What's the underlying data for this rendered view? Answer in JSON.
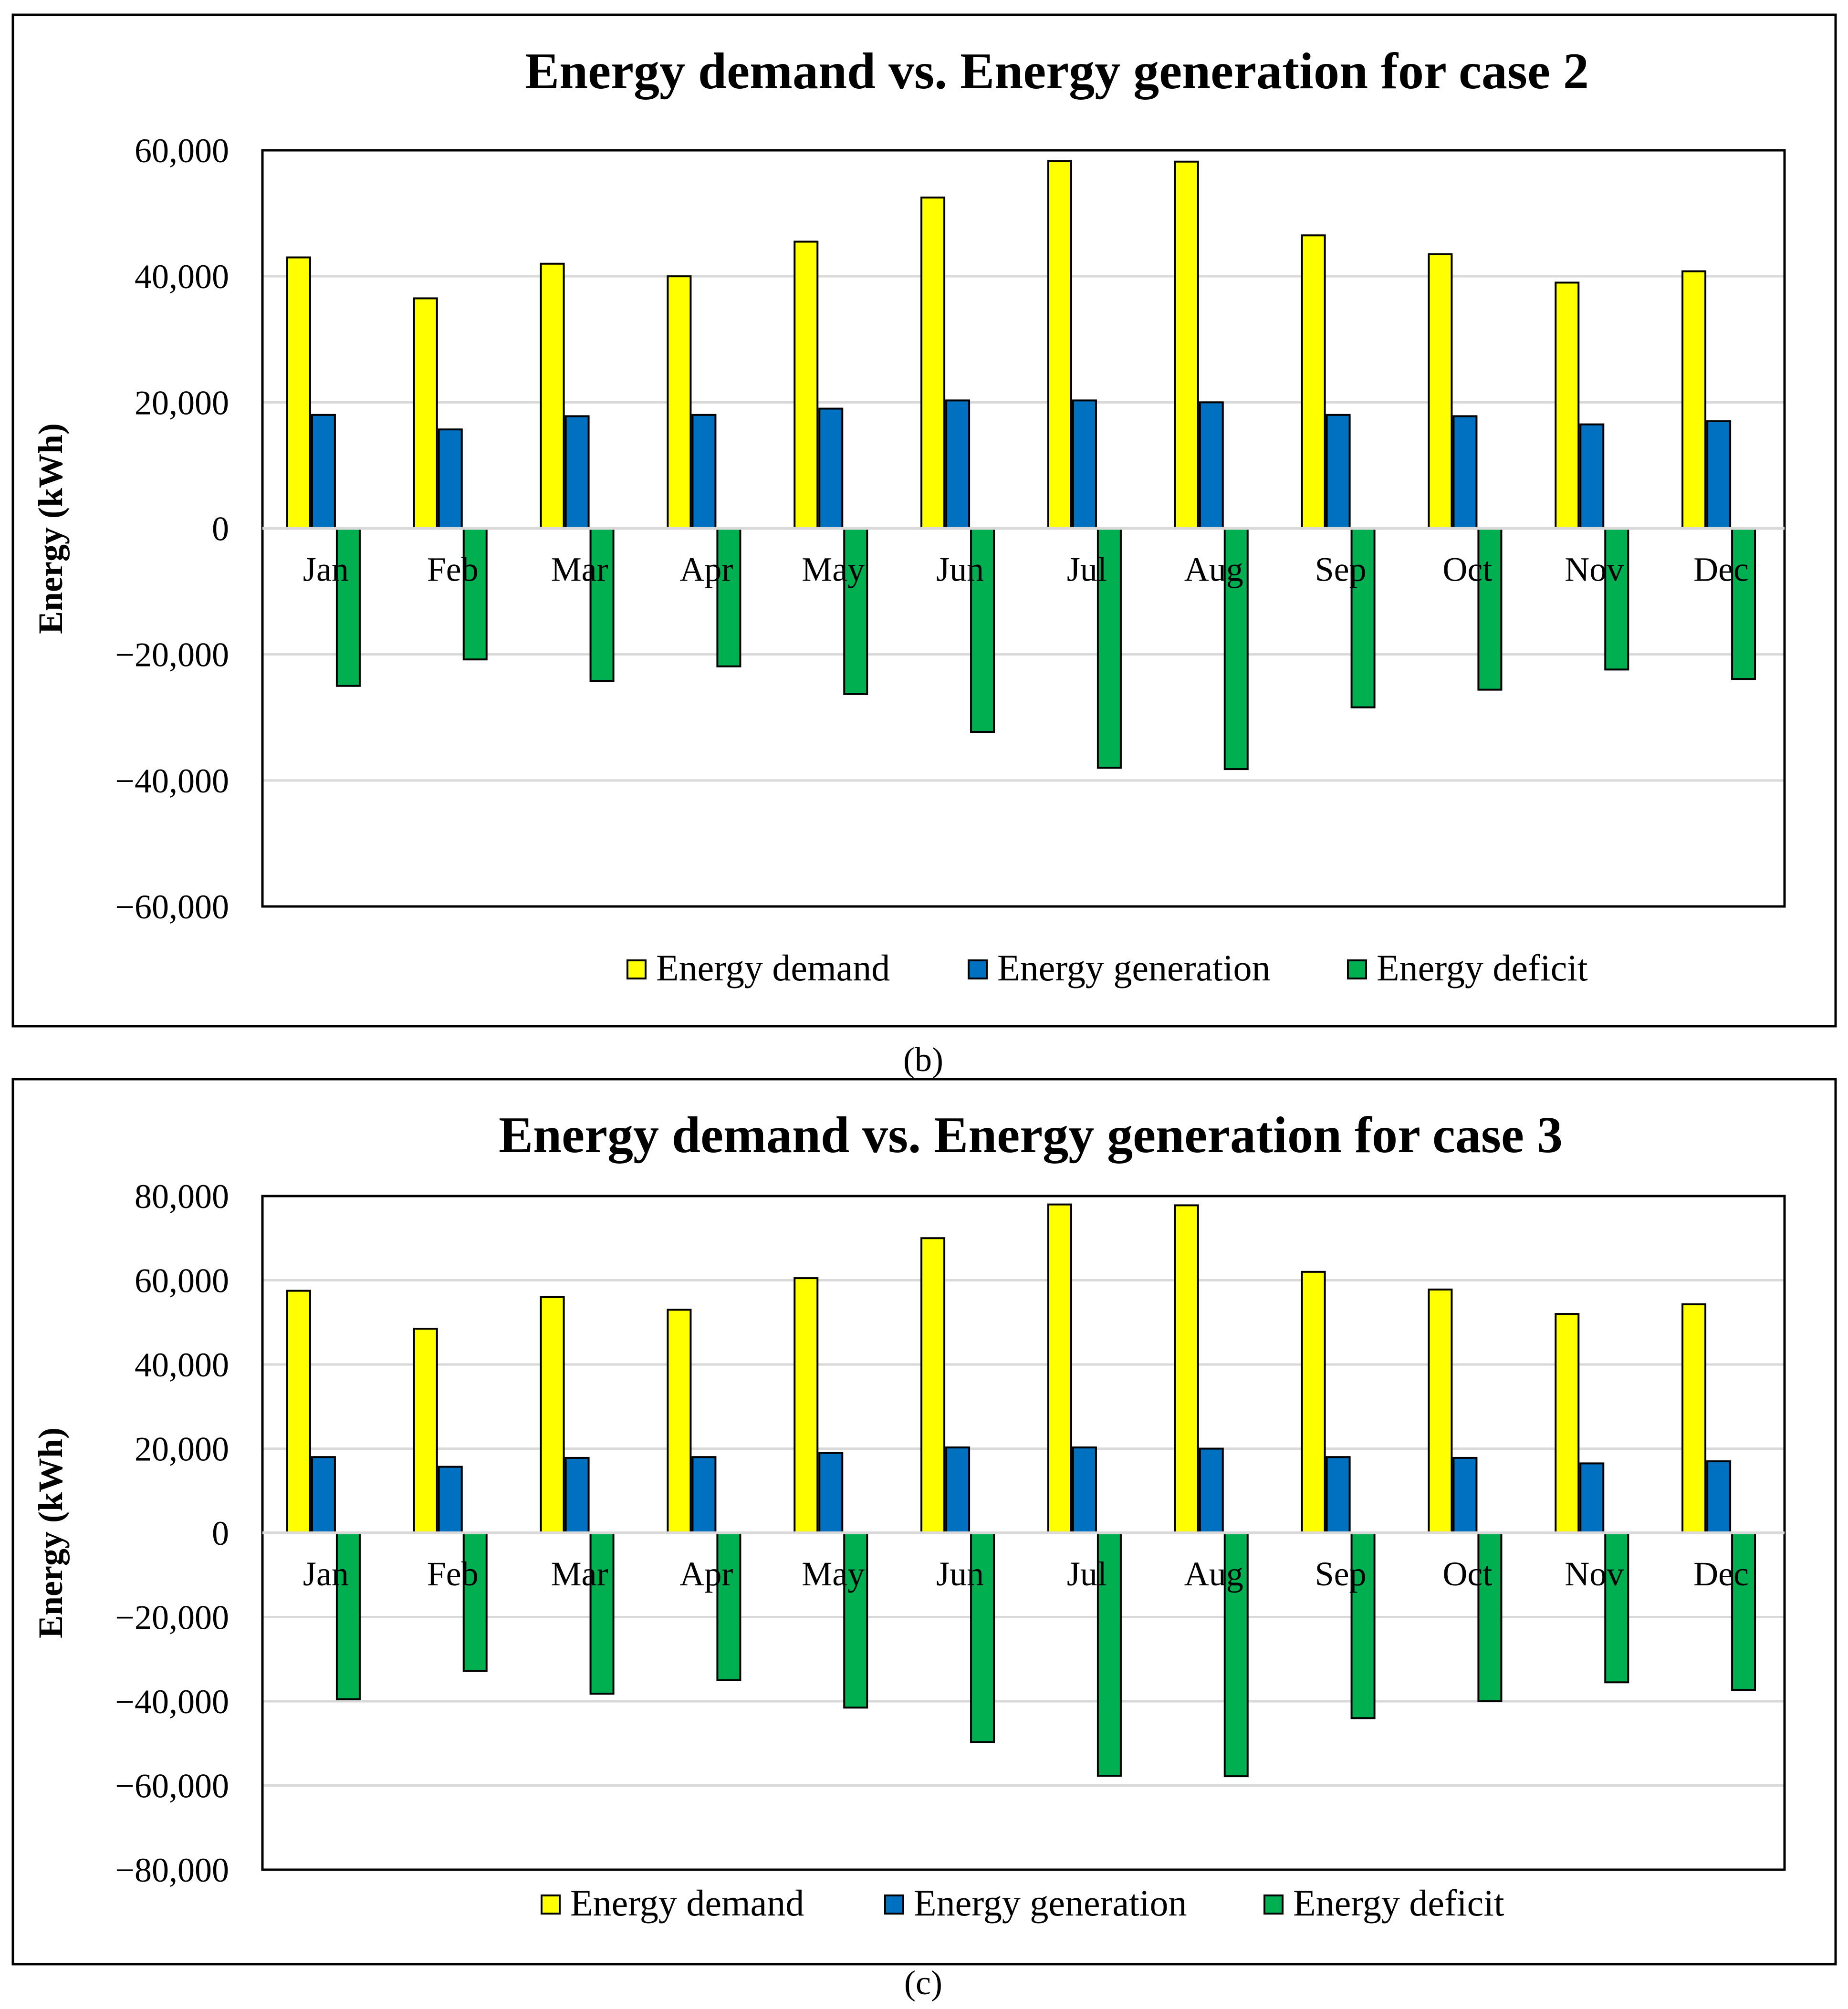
{
  "colors": {
    "demand": "#ffff00",
    "generation": "#0070c0",
    "deficit": "#00b050",
    "gridline": "#d9d9d9",
    "frame": "#000000"
  },
  "chart_data": [
    {
      "type": "bar",
      "title": "Energy demand vs. Energy generation for case 2",
      "ylabel": "Energy (kWh)",
      "xlabel": "",
      "categories": [
        "Jan",
        "Feb",
        "Mar",
        "Apr",
        "May",
        "Jun",
        "Jul",
        "Aug",
        "Sep",
        "Oct",
        "Nov",
        "Dec"
      ],
      "ylim": [
        -60000,
        60000
      ],
      "yticks": [
        60000,
        40000,
        20000,
        0,
        -20000,
        -40000,
        -60000
      ],
      "ytick_labels": [
        "60,000",
        "40,000",
        "20,000",
        "0",
        "−20,000",
        "−40,000",
        "−60,000"
      ],
      "grid": true,
      "series": [
        {
          "name": "Energy demand",
          "key": "demand",
          "values": [
            43000,
            36500,
            42000,
            40000,
            45500,
            52500,
            58300,
            58200,
            46500,
            43500,
            39000,
            40800
          ]
        },
        {
          "name": "Energy generation",
          "key": "generation",
          "values": [
            18000,
            15700,
            17800,
            18000,
            19000,
            20300,
            20300,
            20000,
            18000,
            17800,
            16500,
            17000
          ]
        },
        {
          "name": "Energy deficit",
          "key": "deficit",
          "values": [
            -25000,
            -20800,
            -24200,
            -21900,
            -26300,
            -32300,
            -38000,
            -38200,
            -28400,
            -25600,
            -22400,
            -23900
          ]
        }
      ],
      "legend_position": "bottom",
      "caption": "(b)",
      "caption_letter": "b"
    },
    {
      "type": "bar",
      "title": "Energy demand vs. Energy generation for case 3",
      "ylabel": "Energy (kWh)",
      "xlabel": "",
      "categories": [
        "Jan",
        "Feb",
        "Mar",
        "Apr",
        "May",
        "Jun",
        "Jul",
        "Aug",
        "Sep",
        "Oct",
        "Nov",
        "Dec"
      ],
      "ylim": [
        -80000,
        80000
      ],
      "yticks": [
        80000,
        60000,
        40000,
        20000,
        0,
        -20000,
        -40000,
        -60000,
        -80000
      ],
      "ytick_labels": [
        "80,000",
        "60,000",
        "40,000",
        "20,000",
        "0",
        "−20,000",
        "−40,000",
        "−60,000",
        "−80,000"
      ],
      "grid": true,
      "series": [
        {
          "name": "Energy demand",
          "key": "demand",
          "values": [
            57500,
            48500,
            56000,
            53000,
            60500,
            70000,
            78000,
            77800,
            62000,
            57800,
            52000,
            54300
          ]
        },
        {
          "name": "Energy generation",
          "key": "generation",
          "values": [
            18000,
            15700,
            17800,
            18000,
            19000,
            20300,
            20300,
            20000,
            18000,
            17800,
            16500,
            17000
          ]
        },
        {
          "name": "Energy deficit",
          "key": "deficit",
          "values": [
            -39500,
            -32800,
            -38200,
            -35000,
            -41500,
            -49700,
            -57700,
            -57800,
            -44000,
            -40000,
            -35500,
            -37300
          ]
        }
      ],
      "legend_position": "bottom",
      "caption": "(c)",
      "caption_letter": "c"
    }
  ]
}
